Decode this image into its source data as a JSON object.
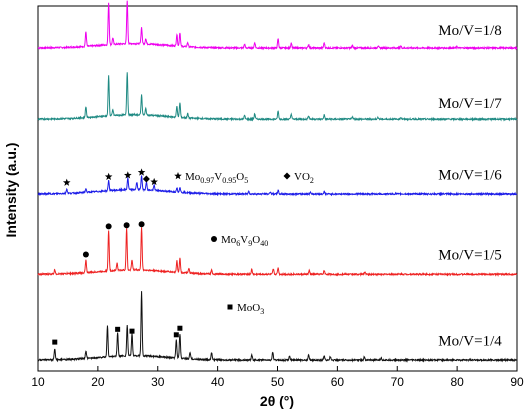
{
  "chart_data": {
    "type": "line",
    "xlabel": "2θ (°)",
    "ylabel": "Intensity (a.u.)",
    "xlim": [
      10,
      90
    ],
    "x_ticks": [
      "10",
      "20",
      "30",
      "40",
      "50",
      "60",
      "70",
      "80",
      "90"
    ],
    "y_ticks": [],
    "grid": false,
    "series": [
      {
        "name": "Mo/V=1/8",
        "color": "#ee00ee",
        "baseline": 0.885,
        "peaks": [
          {
            "x": 18.0,
            "h": 0.04
          },
          {
            "x": 21.8,
            "h": 0.115
          },
          {
            "x": 22.5,
            "h": 0.018
          },
          {
            "x": 24.9,
            "h": 0.118
          },
          {
            "x": 27.3,
            "h": 0.045
          },
          {
            "x": 28.0,
            "h": 0.015
          },
          {
            "x": 33.2,
            "h": 0.032
          },
          {
            "x": 33.7,
            "h": 0.038
          },
          {
            "x": 35.0,
            "h": 0.012
          },
          {
            "x": 44.5,
            "h": 0.01
          },
          {
            "x": 46.2,
            "h": 0.015
          },
          {
            "x": 50.1,
            "h": 0.025
          },
          {
            "x": 52.3,
            "h": 0.014
          },
          {
            "x": 55.2,
            "h": 0.01
          },
          {
            "x": 57.8,
            "h": 0.014
          },
          {
            "x": 62.5,
            "h": 0.007
          },
          {
            "x": 66.8,
            "h": 0.006
          },
          {
            "x": 70.6,
            "h": 0.005
          },
          {
            "x": 80.0,
            "h": 0.004
          }
        ]
      },
      {
        "name": "Mo/V=1/7",
        "color": "#1f8a83",
        "baseline": 0.69,
        "peaks": [
          {
            "x": 18.0,
            "h": 0.03
          },
          {
            "x": 21.8,
            "h": 0.11
          },
          {
            "x": 22.5,
            "h": 0.016
          },
          {
            "x": 24.9,
            "h": 0.118
          },
          {
            "x": 27.3,
            "h": 0.055
          },
          {
            "x": 28.0,
            "h": 0.018
          },
          {
            "x": 33.2,
            "h": 0.03
          },
          {
            "x": 33.7,
            "h": 0.04
          },
          {
            "x": 35.0,
            "h": 0.012
          },
          {
            "x": 44.5,
            "h": 0.01
          },
          {
            "x": 46.2,
            "h": 0.015
          },
          {
            "x": 50.1,
            "h": 0.022
          },
          {
            "x": 52.3,
            "h": 0.014
          },
          {
            "x": 55.2,
            "h": 0.01
          },
          {
            "x": 57.8,
            "h": 0.012
          },
          {
            "x": 62.5,
            "h": 0.007
          },
          {
            "x": 66.8,
            "h": 0.005
          },
          {
            "x": 70.6,
            "h": 0.005
          }
        ]
      },
      {
        "name": "Mo/V=1/6",
        "color": "#1c1ce8",
        "baseline": 0.485,
        "peaks": [
          {
            "x": 14.8,
            "h": 0.012
          },
          {
            "x": 18.0,
            "h": 0.01
          },
          {
            "x": 21.8,
            "h": 0.028
          },
          {
            "x": 25.0,
            "h": 0.032
          },
          {
            "x": 26.5,
            "h": 0.02
          },
          {
            "x": 27.3,
            "h": 0.04
          },
          {
            "x": 28.1,
            "h": 0.022
          },
          {
            "x": 29.4,
            "h": 0.014
          },
          {
            "x": 33.2,
            "h": 0.012
          },
          {
            "x": 33.7,
            "h": 0.014
          },
          {
            "x": 45.2,
            "h": 0.007
          },
          {
            "x": 48.8,
            "h": 0.006
          },
          {
            "x": 50.1,
            "h": 0.01
          },
          {
            "x": 55.5,
            "h": 0.005
          },
          {
            "x": 57.8,
            "h": 0.006
          }
        ]
      },
      {
        "name": "Mo/V=1/5",
        "color": "#ee2222",
        "baseline": 0.265,
        "peaks": [
          {
            "x": 12.8,
            "h": 0.012
          },
          {
            "x": 18.0,
            "h": 0.035
          },
          {
            "x": 21.8,
            "h": 0.112
          },
          {
            "x": 23.2,
            "h": 0.02
          },
          {
            "x": 24.8,
            "h": 0.115
          },
          {
            "x": 25.7,
            "h": 0.028
          },
          {
            "x": 27.3,
            "h": 0.118
          },
          {
            "x": 33.2,
            "h": 0.032
          },
          {
            "x": 33.7,
            "h": 0.04
          },
          {
            "x": 35.2,
            "h": 0.012
          },
          {
            "x": 39.0,
            "h": 0.01
          },
          {
            "x": 45.7,
            "h": 0.013
          },
          {
            "x": 49.3,
            "h": 0.014
          },
          {
            "x": 50.1,
            "h": 0.018
          },
          {
            "x": 55.3,
            "h": 0.01
          },
          {
            "x": 57.8,
            "h": 0.01
          },
          {
            "x": 64.6,
            "h": 0.006
          }
        ]
      },
      {
        "name": "Mo/V=1/4",
        "color": "#111111",
        "baseline": 0.03,
        "peaks": [
          {
            "x": 12.8,
            "h": 0.03
          },
          {
            "x": 18.0,
            "h": 0.02
          },
          {
            "x": 21.6,
            "h": 0.085
          },
          {
            "x": 23.3,
            "h": 0.065
          },
          {
            "x": 24.9,
            "h": 0.085
          },
          {
            "x": 25.7,
            "h": 0.06
          },
          {
            "x": 27.3,
            "h": 0.175
          },
          {
            "x": 33.1,
            "h": 0.05
          },
          {
            "x": 33.7,
            "h": 0.068
          },
          {
            "x": 35.4,
            "h": 0.018
          },
          {
            "x": 39.0,
            "h": 0.02
          },
          {
            "x": 45.7,
            "h": 0.014
          },
          {
            "x": 49.2,
            "h": 0.022
          },
          {
            "x": 52.0,
            "h": 0.012
          },
          {
            "x": 55.2,
            "h": 0.014
          },
          {
            "x": 57.8,
            "h": 0.012
          },
          {
            "x": 58.8,
            "h": 0.01
          },
          {
            "x": 64.5,
            "h": 0.008
          },
          {
            "x": 67.3,
            "h": 0.006
          }
        ]
      }
    ],
    "markers": [
      {
        "type": "square",
        "series": "Mo/V=1/4",
        "x": [
          12.8,
          23.3,
          25.7,
          33.1,
          33.7
        ]
      },
      {
        "type": "circle",
        "series": "Mo/V=1/5",
        "x": [
          18.0,
          21.8,
          24.8,
          27.3
        ]
      },
      {
        "type": "star",
        "series": "Mo/V=1/6",
        "x": [
          14.8,
          21.8,
          25.0,
          27.3,
          29.4
        ]
      },
      {
        "type": "diamond",
        "series": "Mo/V=1/6",
        "x": [
          28.1
        ]
      }
    ],
    "annotations": [
      {
        "symbol": "★",
        "formula": [
          "Mo",
          "0.97",
          "V",
          "0.95",
          "O",
          "5"
        ]
      },
      {
        "symbol": "◆",
        "formula": [
          "VO",
          "2"
        ]
      },
      {
        "symbol": "●",
        "formula": [
          "Mo",
          "6",
          "V",
          "9",
          "O",
          "40"
        ]
      },
      {
        "symbol": "■",
        "formula": [
          "MoO",
          "3"
        ]
      }
    ]
  }
}
